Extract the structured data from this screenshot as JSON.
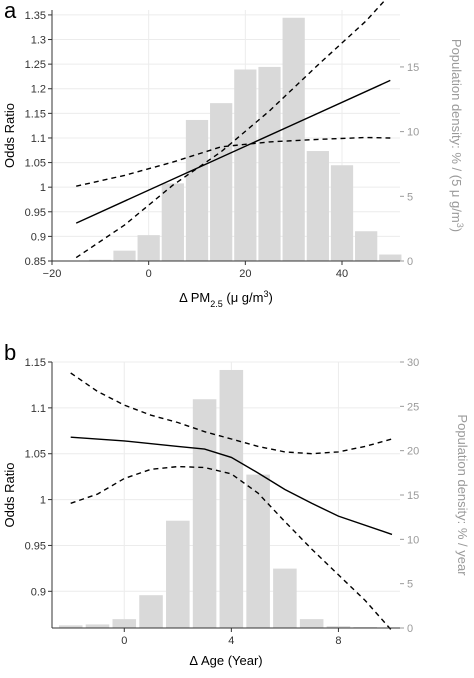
{
  "colors": {
    "bar": "#d9d9d9",
    "line": "#000000",
    "grid": "#ececec",
    "right_axis": "#9a9a9a"
  },
  "chart_data": [
    {
      "panel": "a",
      "type": "bar",
      "overlay": "line",
      "xlabel_html": "Δ PM<tspan baseline-shift=\"sub\" font-size=\"9\">2.5</tspan> (μ g/m<tspan baseline-shift=\"super\" font-size=\"9\">3</tspan>)",
      "ylabel": "Odds Ratio",
      "y2label_html": "Population density: % / (5 μ g/m<tspan baseline-shift=\"super\" font-size=\"9\">3</tspan>)",
      "xlim": [
        -20,
        52
      ],
      "ylim": [
        0.85,
        1.36
      ],
      "y2lim": [
        0,
        19.4
      ],
      "xticks": [
        -20,
        0,
        20,
        40
      ],
      "xtick_labels": [
        "−20",
        "0",
        "20",
        "40"
      ],
      "yticks": [
        0.85,
        0.9,
        0.95,
        1,
        1.05,
        1.1,
        1.15,
        1.2,
        1.25,
        1.3,
        1.35
      ],
      "ytick_labels": [
        "0.85",
        "0.9",
        "0.95",
        "1",
        "1.05",
        "1.1",
        "1.15",
        "1.2",
        "1.25",
        "1.3",
        "1.35"
      ],
      "y2ticks": [
        0,
        5,
        10,
        15
      ],
      "y2tick_labels": [
        "0",
        "5",
        "10",
        "15"
      ],
      "grid": true,
      "bar_width": 4.6,
      "bars": {
        "centers": [
          -10,
          -5,
          0,
          5,
          10,
          15,
          20,
          25,
          30,
          35,
          40,
          45,
          50
        ],
        "values": [
          0.1,
          0.8,
          2.0,
          6.0,
          10.9,
          12.2,
          14.8,
          15.0,
          18.8,
          8.5,
          7.4,
          2.3,
          0.5
        ]
      },
      "series": [
        {
          "type": "line",
          "style": "solid",
          "x": [
            -15,
            50
          ],
          "y": [
            0.927,
            1.217
          ]
        },
        {
          "type": "line",
          "style": "dashed",
          "x": [
            -15,
            -5,
            5,
            15,
            25,
            35,
            45,
            50
          ],
          "y": [
            0.857,
            0.923,
            1.004,
            1.072,
            1.155,
            1.248,
            1.338,
            1.392
          ]
        },
        {
          "type": "line",
          "style": "dashed",
          "x": [
            -15,
            -5,
            5,
            15,
            25,
            35,
            45,
            50
          ],
          "y": [
            1.002,
            1.024,
            1.051,
            1.082,
            1.092,
            1.097,
            1.101,
            1.1
          ]
        }
      ]
    },
    {
      "panel": "b",
      "type": "bar",
      "overlay": "line",
      "xlabel": "Δ Age (Year)",
      "ylabel": "Odds Ratio",
      "y2label": "Population density: % / year",
      "xlim": [
        -2.7,
        10.3
      ],
      "ylim": [
        0.86,
        1.15
      ],
      "y2lim": [
        0,
        30
      ],
      "xticks": [
        0,
        4,
        8
      ],
      "xtick_labels": [
        "0",
        "4",
        "8"
      ],
      "yticks": [
        0.9,
        0.95,
        1,
        1.05,
        1.1,
        1.15
      ],
      "ytick_labels": [
        "0.9",
        "0.95",
        "1",
        "1.05",
        "1.1",
        "1.15"
      ],
      "y2ticks": [
        0,
        5,
        10,
        15,
        20,
        25,
        30
      ],
      "y2tick_labels": [
        "0",
        "5",
        "10",
        "15",
        "20",
        "25",
        "30"
      ],
      "grid": true,
      "bar_width": 0.88,
      "bars": {
        "centers": [
          -2,
          -1,
          0,
          1,
          2,
          3,
          4,
          5,
          6,
          7,
          8,
          9
        ],
        "values": [
          0.3,
          0.4,
          1.0,
          3.7,
          12.1,
          25.8,
          29.1,
          17.3,
          6.7,
          1.0,
          0.2,
          0.1
        ]
      },
      "series": [
        {
          "type": "line",
          "style": "solid",
          "x": [
            -2,
            0,
            2,
            3,
            4,
            5,
            6,
            7,
            8,
            10
          ],
          "y": [
            1.068,
            1.064,
            1.058,
            1.055,
            1.046,
            1.029,
            1.011,
            0.996,
            0.982,
            0.962
          ]
        },
        {
          "type": "line",
          "style": "dashed",
          "x": [
            -2,
            -1,
            0,
            1,
            2,
            3,
            4,
            5,
            6,
            7,
            8,
            9,
            10
          ],
          "y": [
            1.138,
            1.118,
            1.103,
            1.092,
            1.084,
            1.074,
            1.066,
            1.058,
            1.052,
            1.05,
            1.052,
            1.058,
            1.066
          ]
        },
        {
          "type": "line",
          "style": "dashed",
          "x": [
            -2,
            -1,
            0,
            1,
            2,
            3,
            4,
            5,
            6,
            7,
            8,
            9,
            10
          ],
          "y": [
            0.996,
            1.006,
            1.023,
            1.033,
            1.036,
            1.035,
            1.028,
            1.007,
            0.976,
            0.946,
            0.918,
            0.89,
            0.857
          ]
        }
      ]
    }
  ]
}
